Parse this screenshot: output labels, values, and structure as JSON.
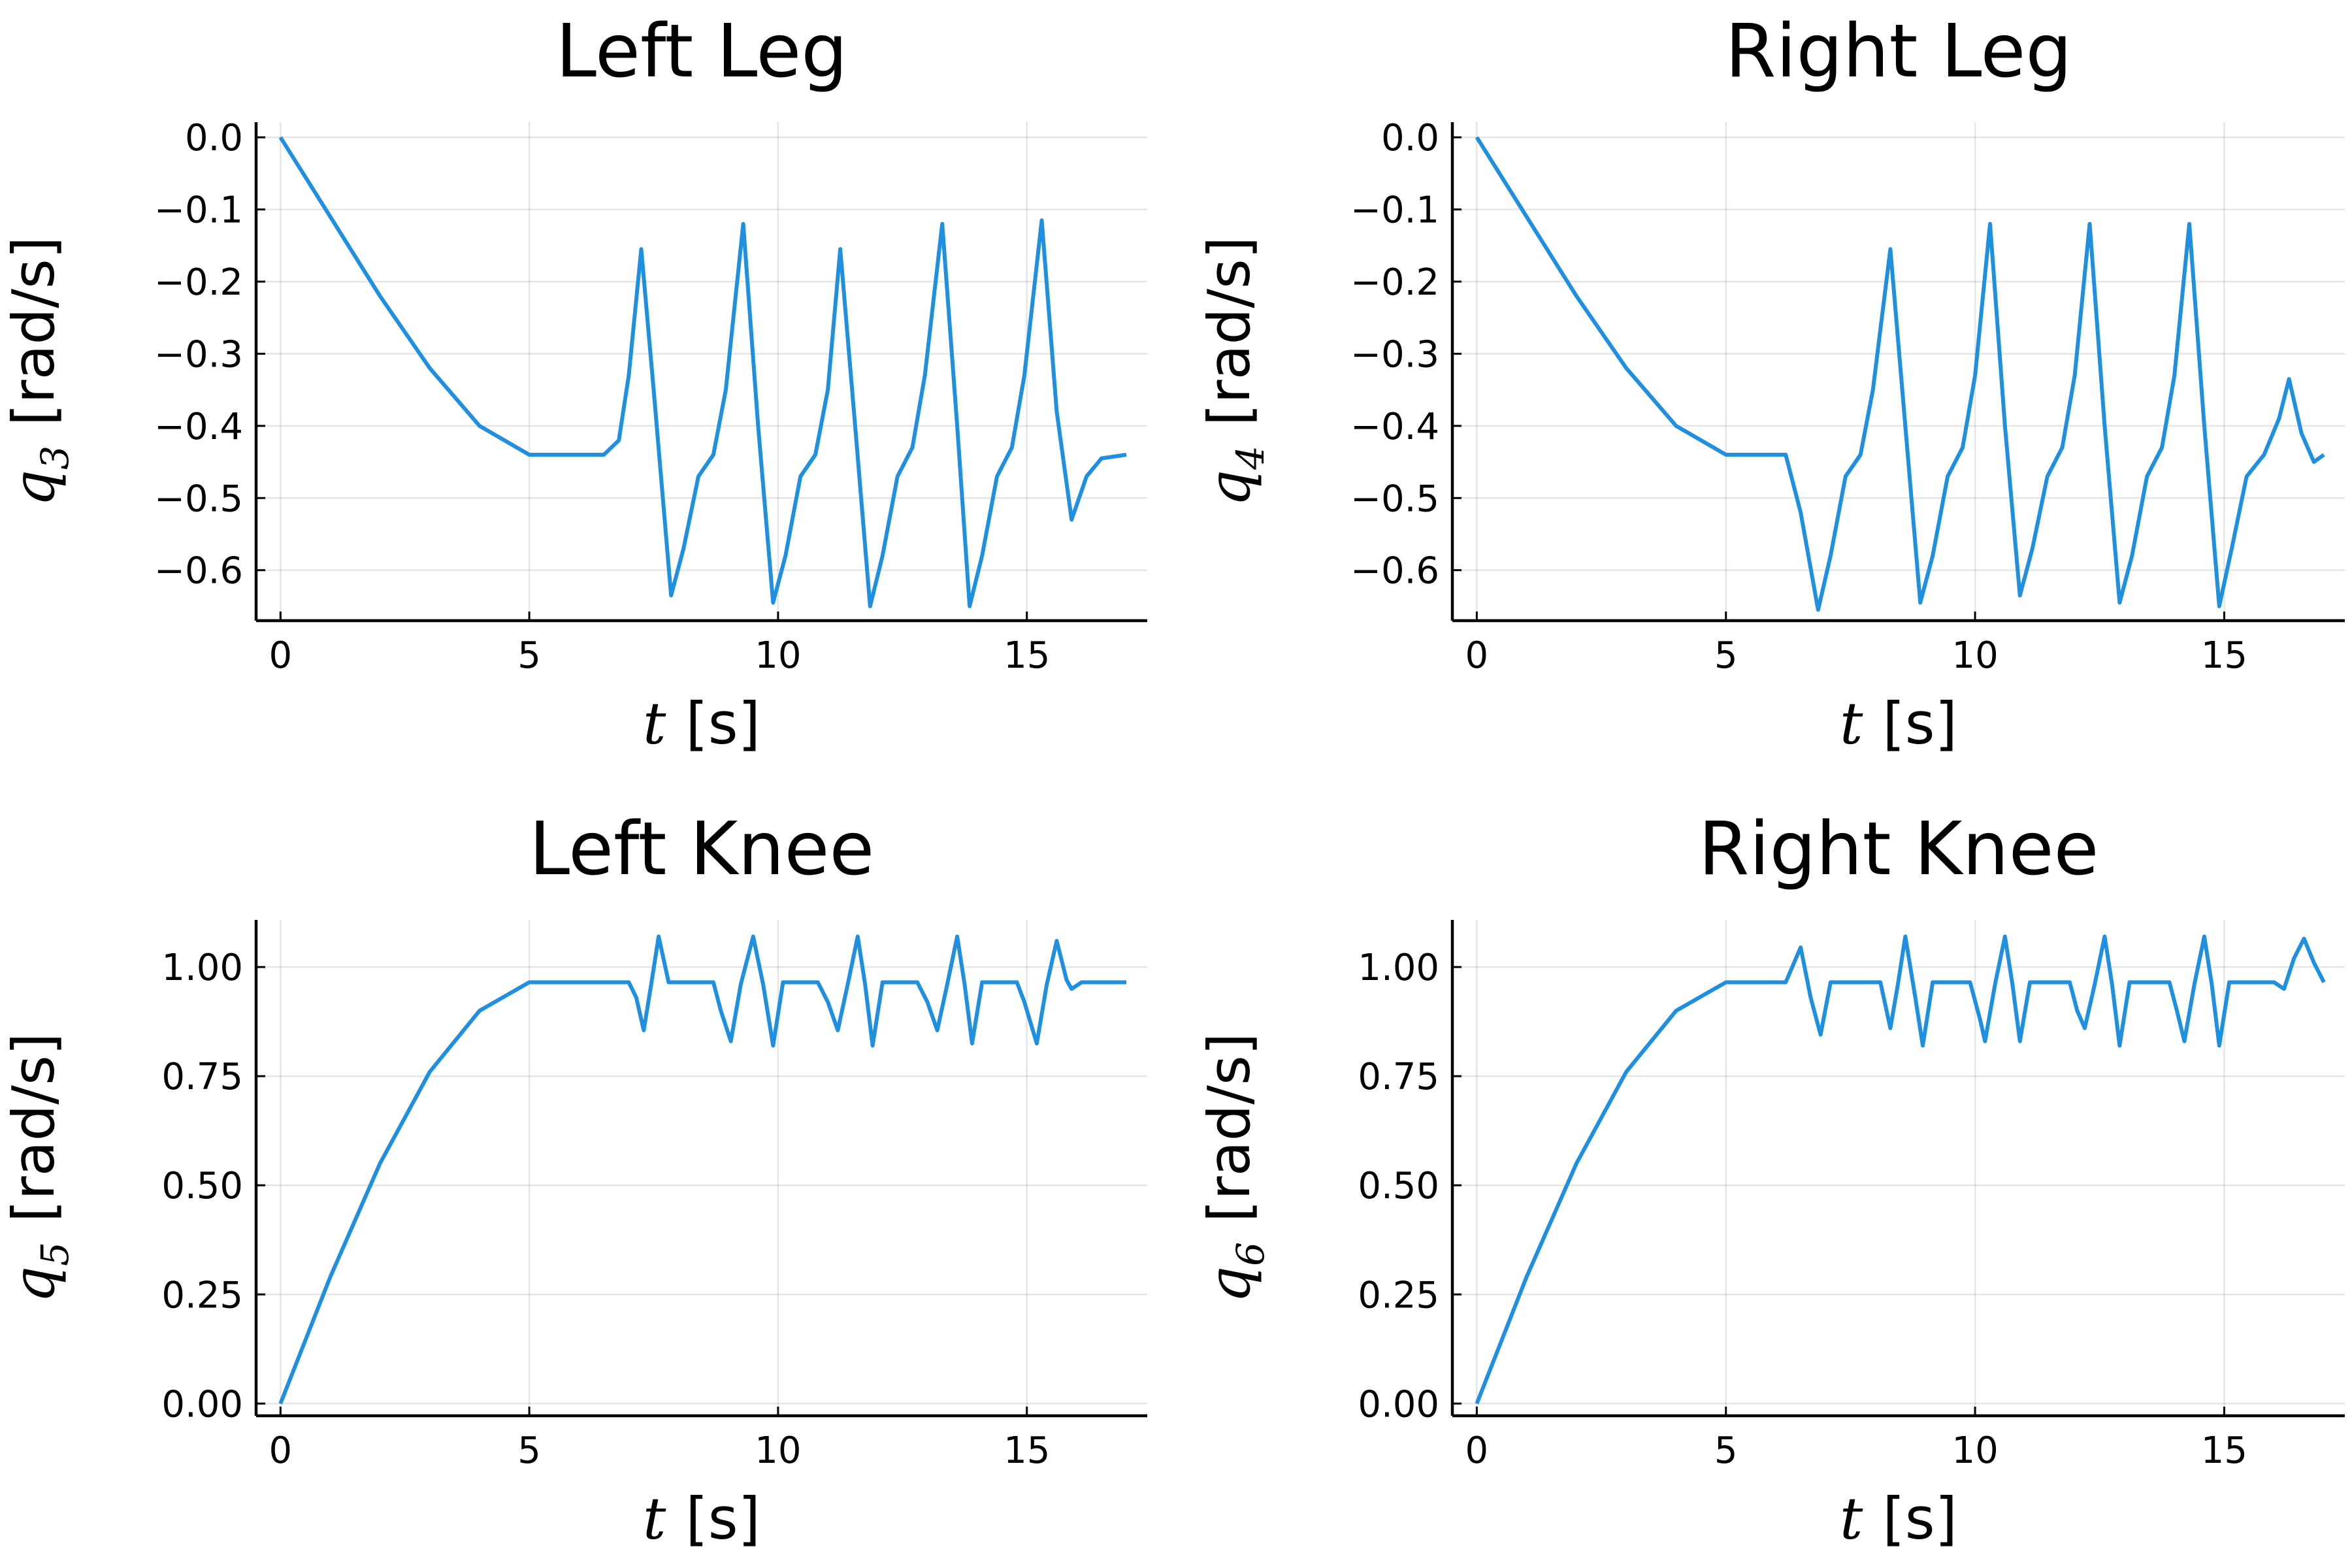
{
  "chart_data": [
    {
      "type": "line",
      "title": "Left Leg",
      "color": "#1f8fdf",
      "xlabel": {
        "symbol": "t",
        "unit": "[s]"
      },
      "ylabel": {
        "symbol": "q",
        "subscript": "3",
        "unit": "[rad/s]"
      },
      "xlim": [
        -0.49,
        17.42
      ],
      "ylim": [
        -0.67,
        0.021
      ],
      "xticks": [
        0,
        5,
        10,
        15
      ],
      "yticks": [
        {
          "value": 0,
          "label": "0.0"
        },
        {
          "value": -0.1,
          "label": "−0.1"
        },
        {
          "value": -0.2,
          "label": "−0.2"
        },
        {
          "value": -0.3,
          "label": "−0.3"
        },
        {
          "value": -0.4,
          "label": "−0.4"
        },
        {
          "value": -0.5,
          "label": "−0.5"
        },
        {
          "value": -0.6,
          "label": "−0.6"
        }
      ],
      "grid": true,
      "x": [
        0,
        1,
        2,
        3,
        4,
        5,
        6.5,
        6.8,
        7.0,
        7.25,
        7.5,
        7.85,
        8.1,
        8.4,
        8.7,
        8.95,
        9.3,
        9.6,
        9.9,
        10.15,
        10.45,
        10.75,
        11.0,
        11.25,
        11.55,
        11.85,
        12.1,
        12.4,
        12.7,
        12.95,
        13.3,
        13.6,
        13.85,
        14.1,
        14.4,
        14.7,
        14.95,
        15.3,
        15.6,
        15.9,
        16.2,
        16.5,
        17
      ],
      "values": [
        0,
        -0.11,
        -0.22,
        -0.32,
        -0.4,
        -0.44,
        -0.44,
        -0.42,
        -0.33,
        -0.155,
        -0.35,
        -0.635,
        -0.57,
        -0.47,
        -0.44,
        -0.35,
        -0.12,
        -0.4,
        -0.645,
        -0.58,
        -0.47,
        -0.44,
        -0.35,
        -0.155,
        -0.4,
        -0.65,
        -0.58,
        -0.47,
        -0.43,
        -0.33,
        -0.12,
        -0.4,
        -0.65,
        -0.58,
        -0.47,
        -0.43,
        -0.33,
        -0.115,
        -0.38,
        -0.53,
        -0.47,
        -0.445,
        -0.44
      ]
    },
    {
      "type": "line",
      "title": "Right Leg",
      "color": "#1f8fdf",
      "xlabel": {
        "symbol": "t",
        "unit": "[s]"
      },
      "ylabel": {
        "symbol": "q",
        "subscript": "4",
        "unit": "[rad/s]"
      },
      "xlim": [
        -0.49,
        17.42
      ],
      "ylim": [
        -0.67,
        0.021
      ],
      "xticks": [
        0,
        5,
        10,
        15
      ],
      "yticks": [
        {
          "value": 0,
          "label": "0.0"
        },
        {
          "value": -0.1,
          "label": "−0.1"
        },
        {
          "value": -0.2,
          "label": "−0.2"
        },
        {
          "value": -0.3,
          "label": "−0.3"
        },
        {
          "value": -0.4,
          "label": "−0.4"
        },
        {
          "value": -0.5,
          "label": "−0.5"
        },
        {
          "value": -0.6,
          "label": "−0.6"
        }
      ],
      "grid": true,
      "x": [
        0,
        1,
        2,
        3,
        4,
        5,
        6.2,
        6.5,
        6.85,
        7.1,
        7.4,
        7.7,
        7.95,
        8.3,
        8.6,
        8.9,
        9.15,
        9.45,
        9.75,
        10.0,
        10.3,
        10.6,
        10.9,
        11.15,
        11.45,
        11.75,
        12.0,
        12.3,
        12.6,
        12.9,
        13.15,
        13.45,
        13.75,
        14.0,
        14.3,
        14.6,
        14.9,
        15.15,
        15.45,
        15.8,
        16.1,
        16.3,
        16.55,
        16.8,
        17
      ],
      "values": [
        0,
        -0.11,
        -0.22,
        -0.32,
        -0.4,
        -0.44,
        -0.44,
        -0.52,
        -0.655,
        -0.58,
        -0.47,
        -0.44,
        -0.35,
        -0.155,
        -0.4,
        -0.645,
        -0.58,
        -0.47,
        -0.43,
        -0.33,
        -0.12,
        -0.4,
        -0.635,
        -0.57,
        -0.47,
        -0.43,
        -0.33,
        -0.12,
        -0.4,
        -0.645,
        -0.58,
        -0.47,
        -0.43,
        -0.33,
        -0.12,
        -0.4,
        -0.65,
        -0.57,
        -0.47,
        -0.44,
        -0.39,
        -0.335,
        -0.41,
        -0.45,
        -0.44
      ]
    },
    {
      "type": "line",
      "title": "Left Knee",
      "color": "#1f8fdf",
      "xlabel": {
        "symbol": "t",
        "unit": "[s]"
      },
      "ylabel": {
        "symbol": "q",
        "subscript": "5",
        "unit": "[rad/s]"
      },
      "xlim": [
        -0.49,
        17.42
      ],
      "ylim": [
        -0.028,
        1.108
      ],
      "xticks": [
        0,
        5,
        10,
        15
      ],
      "yticks": [
        {
          "value": 0,
          "label": "0.00"
        },
        0.25,
        {
          "value": 0.5,
          "label": "0.50"
        },
        0.75,
        {
          "value": 1,
          "label": "1.00"
        }
      ],
      "grid": true,
      "x": [
        0,
        1,
        2,
        3,
        4,
        5,
        7.0,
        7.15,
        7.3,
        7.45,
        7.6,
        7.8,
        8.7,
        8.85,
        9.05,
        9.25,
        9.5,
        9.7,
        9.9,
        10.1,
        10.8,
        11.0,
        11.2,
        11.4,
        11.6,
        11.75,
        11.9,
        12.1,
        12.8,
        13.0,
        13.2,
        13.4,
        13.6,
        13.75,
        13.9,
        14.1,
        14.8,
        14.95,
        15.2,
        15.4,
        15.6,
        15.8,
        15.9,
        16.1,
        17
      ],
      "values": [
        0,
        0.29,
        0.55,
        0.76,
        0.9,
        0.965,
        0.965,
        0.93,
        0.855,
        0.96,
        1.07,
        0.965,
        0.965,
        0.9,
        0.83,
        0.96,
        1.07,
        0.96,
        0.82,
        0.965,
        0.965,
        0.92,
        0.855,
        0.96,
        1.07,
        0.96,
        0.82,
        0.965,
        0.965,
        0.92,
        0.855,
        0.96,
        1.07,
        0.96,
        0.825,
        0.965,
        0.965,
        0.92,
        0.825,
        0.96,
        1.06,
        0.97,
        0.95,
        0.965,
        0.965
      ]
    },
    {
      "type": "line",
      "title": "Right Knee",
      "color": "#1f8fdf",
      "xlabel": {
        "symbol": "t",
        "unit": "[s]"
      },
      "ylabel": {
        "symbol": "q",
        "subscript": "6",
        "unit": "[rad/s]"
      },
      "xlim": [
        -0.49,
        17.42
      ],
      "ylim": [
        -0.028,
        1.108
      ],
      "xticks": [
        0,
        5,
        10,
        15
      ],
      "yticks": [
        {
          "value": 0,
          "label": "0.00"
        },
        0.25,
        {
          "value": 0.5,
          "label": "0.50"
        },
        0.75,
        {
          "value": 1,
          "label": "1.00"
        }
      ],
      "grid": true,
      "x": [
        0,
        1,
        2,
        3,
        4,
        5,
        6.2,
        6.5,
        6.7,
        6.9,
        7.1,
        8.1,
        8.3,
        8.45,
        8.6,
        8.8,
        8.95,
        9.15,
        9.9,
        10.1,
        10.2,
        10.4,
        10.6,
        10.75,
        10.9,
        11.1,
        11.9,
        12.05,
        12.2,
        12.4,
        12.6,
        12.75,
        12.9,
        13.1,
        13.9,
        14.05,
        14.2,
        14.4,
        14.6,
        14.75,
        14.9,
        15.1,
        16.0,
        16.2,
        16.4,
        16.6,
        16.8,
        17
      ],
      "values": [
        0,
        0.29,
        0.55,
        0.76,
        0.9,
        0.965,
        0.965,
        1.045,
        0.93,
        0.845,
        0.965,
        0.965,
        0.86,
        0.96,
        1.07,
        0.93,
        0.82,
        0.965,
        0.965,
        0.88,
        0.83,
        0.96,
        1.07,
        0.96,
        0.83,
        0.965,
        0.965,
        0.9,
        0.86,
        0.96,
        1.07,
        0.96,
        0.82,
        0.965,
        0.965,
        0.9,
        0.83,
        0.96,
        1.07,
        0.96,
        0.82,
        0.965,
        0.965,
        0.95,
        1.02,
        1.065,
        1.01,
        0.965
      ]
    }
  ]
}
